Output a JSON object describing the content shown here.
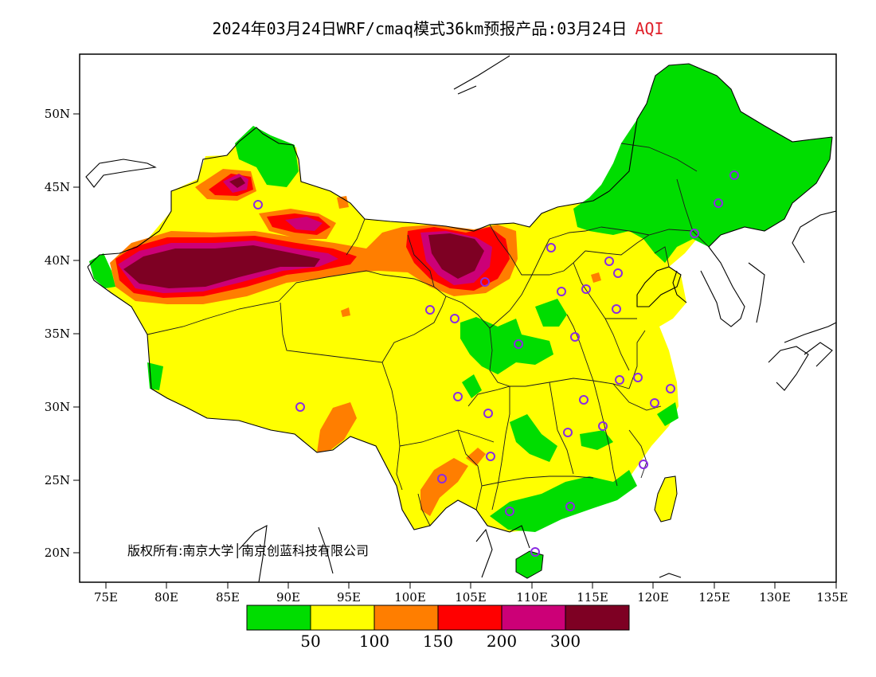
{
  "title": {
    "main": "2024年03月24日WRF/cmaq模式36km预报产品:03月24日",
    "product": "AQI"
  },
  "axes": {
    "lat_ticks": [
      "50N",
      "45N",
      "40N",
      "35N",
      "30N",
      "25N",
      "20N"
    ],
    "lon_ticks": [
      "75E",
      "80E",
      "85E",
      "90E",
      "95E",
      "100E",
      "105E",
      "110E",
      "115E",
      "120E",
      "125E",
      "130E",
      "135E"
    ]
  },
  "copyright": "版权所有:南京大学│南京创蓝科技有限公司",
  "legend": {
    "colors": [
      "#00dd00",
      "#ffff00",
      "#ff7e00",
      "#ff0000",
      "#cc0077",
      "#7e0023"
    ],
    "labels": [
      "50",
      "100",
      "150",
      "200",
      "300"
    ]
  },
  "colors": {
    "frame": "#000000",
    "station_marker": "#8a2be2",
    "title_accent": "#e0202a"
  }
}
